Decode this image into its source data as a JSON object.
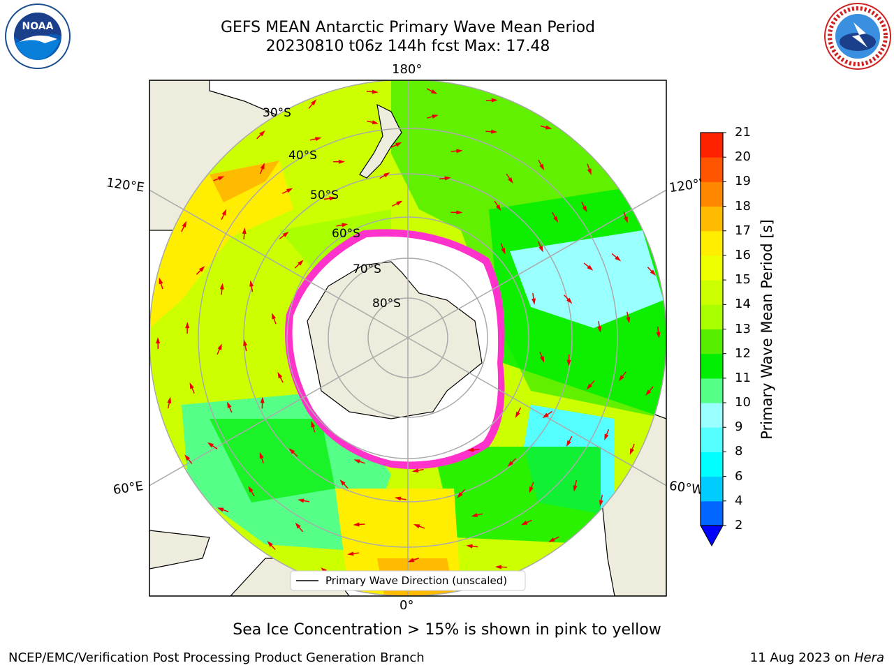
{
  "title": {
    "line1": "GEFS MEAN Antarctic Primary Wave Mean Period",
    "line2": "20230810 t06z 144h fcst   Max: 17.48"
  },
  "map": {
    "projection": "south-polar-stereographic",
    "longitude_labels": {
      "top": "180°",
      "bottom": "0°",
      "left_upper": "120°E",
      "left_lower": "60°E",
      "right_upper": "120°W",
      "right_lower": "60°W"
    },
    "latitude_labels": [
      "30°S",
      "40°S",
      "50°S",
      "60°S",
      "70°S",
      "80°S"
    ],
    "legend": "Primary Wave Direction (unscaled)",
    "arrow_color": "#ee0000",
    "land_color": "#eeecdc",
    "sea_ice_colors": [
      "#ff33cc",
      "#ffaa00",
      "#ffff44"
    ]
  },
  "colorbar": {
    "label": "Primary Wave Mean Period [s]",
    "ticks": [
      "2",
      "4",
      "6",
      "8",
      "9",
      "10",
      "11",
      "12",
      "13",
      "14",
      "15",
      "16",
      "17",
      "18",
      "19",
      "20",
      "21"
    ],
    "colors": [
      "#0066ff",
      "#00ccff",
      "#00ffff",
      "#55ffff",
      "#99ffff",
      "#55ff88",
      "#00ee00",
      "#55ee00",
      "#aaff00",
      "#ccff00",
      "#eeff00",
      "#ffee00",
      "#ffbb00",
      "#ff8800",
      "#ff5500",
      "#ff2200"
    ],
    "under_color": "#0000ff"
  },
  "note": "Sea Ice Concentration > 15% is shown in pink to yellow",
  "footer": {
    "left": "NCEP/EMC/Verification Post Processing Product Generation Branch",
    "right_date": "11 Aug 2023 on",
    "right_host": "Hera"
  },
  "logos": {
    "left": "noaa-logo",
    "right": "nws-logo"
  }
}
